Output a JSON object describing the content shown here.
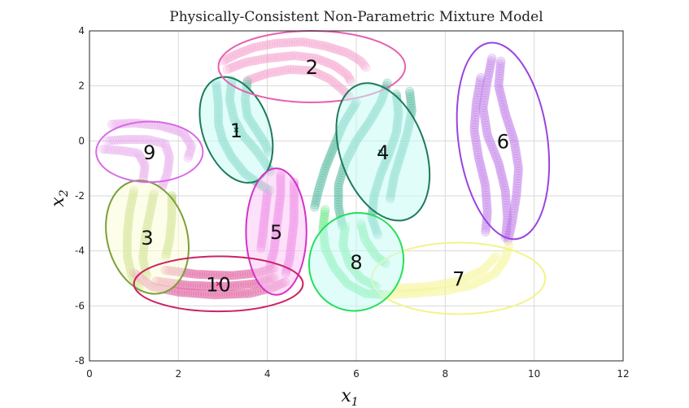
{
  "chart_data": {
    "type": "scatter",
    "title": "Physically-Consistent Non-Parametric Mixture Model",
    "xlabel": "x",
    "xlabel_sub": "1",
    "ylabel": "x",
    "ylabel_sub": "2",
    "xlim": [
      0,
      12
    ],
    "ylim": [
      -8,
      4
    ],
    "xticks": [
      0,
      2,
      4,
      6,
      8,
      10,
      12
    ],
    "yticks": [
      -8,
      -6,
      -4,
      -2,
      0,
      2,
      4
    ],
    "grid": true,
    "trajectory_colors": {
      "light_pink": "#f4a0cd",
      "teal": "#4db89a",
      "violet": "#c07ce8",
      "olive": "#a3c24a",
      "green": "#5ee67e",
      "yellow": "#f7f59a",
      "hot_pink": "#e0569a",
      "magenta": "#e04ad0",
      "lavender": "#e6a8ee"
    },
    "clusters": [
      {
        "label": "1",
        "center": [
          3.3,
          0.4
        ],
        "rx": 0.75,
        "ry": 2.0,
        "angle": 20,
        "edge": "#1e7a5a",
        "fill": "#c6fbf5",
        "marker": [
          3.3,
          0.4
        ]
      },
      {
        "label": "2",
        "center": [
          5.0,
          2.7
        ],
        "rx": 2.1,
        "ry": 1.3,
        "angle": 0,
        "edge": "#e85fb0",
        "fill": "none"
      },
      {
        "label": "3",
        "center": [
          1.3,
          -3.5
        ],
        "rx": 0.9,
        "ry": 2.1,
        "angle": 15,
        "edge": "#7aa038",
        "fill": "#fbfdd8"
      },
      {
        "label": "4",
        "center": [
          6.6,
          -0.4
        ],
        "rx": 0.95,
        "ry": 2.6,
        "angle": 20,
        "edge": "#1e7a5a",
        "fill": "#c6fbf5",
        "marker": [
          6.55,
          -0.4
        ]
      },
      {
        "label": "5",
        "center": [
          4.2,
          -3.3
        ],
        "rx": 0.68,
        "ry": 2.3,
        "angle": 0,
        "edge": "#d432c8",
        "fill": "#fcc6f5"
      },
      {
        "label": "6",
        "center": [
          9.3,
          0.0
        ],
        "rx": 1.0,
        "ry": 3.6,
        "angle": 8,
        "edge": "#9a44e0",
        "fill": "none"
      },
      {
        "label": "7",
        "center": [
          8.3,
          -5.0
        ],
        "rx": 1.95,
        "ry": 1.3,
        "angle": 0,
        "edge": "#f5f28c",
        "fill": "none"
      },
      {
        "label": "8",
        "center": [
          6.0,
          -4.4
        ],
        "rx": 1.05,
        "ry": 1.8,
        "angle": -25,
        "edge": "#24e058",
        "fill": "#c6fbf5"
      },
      {
        "label": "9",
        "center": [
          1.35,
          -0.4
        ],
        "rx": 1.2,
        "ry": 1.1,
        "angle": 0,
        "edge": "#d86ae6",
        "fill": "none"
      },
      {
        "label": "10",
        "center": [
          2.9,
          -5.2
        ],
        "rx": 1.9,
        "ry": 1.0,
        "angle": 0,
        "edge": "#cc2266",
        "fill": "none",
        "marker": [
          2.9,
          -5.2
        ]
      }
    ],
    "trajectories": [
      {
        "color": "light_pink",
        "points": [
          [
            3.0,
            2.9
          ],
          [
            3.3,
            3.15
          ],
          [
            3.7,
            3.4
          ],
          [
            4.2,
            3.55
          ],
          [
            4.8,
            3.6
          ],
          [
            5.3,
            3.45
          ],
          [
            5.8,
            3.2
          ],
          [
            6.1,
            2.9
          ],
          [
            6.25,
            2.6
          ]
        ]
      },
      {
        "color": "light_pink",
        "points": [
          [
            3.1,
            2.6
          ],
          [
            3.5,
            2.85
          ],
          [
            4.0,
            3.0
          ],
          [
            4.6,
            3.1
          ],
          [
            5.1,
            3.0
          ],
          [
            5.5,
            2.75
          ],
          [
            5.8,
            2.4
          ],
          [
            5.9,
            2.1
          ]
        ]
      },
      {
        "color": "light_pink",
        "points": [
          [
            3.55,
            2.2
          ],
          [
            4.0,
            2.45
          ],
          [
            4.5,
            2.6
          ],
          [
            5.0,
            2.55
          ],
          [
            5.4,
            2.25
          ],
          [
            5.7,
            1.85
          ],
          [
            5.9,
            1.5
          ]
        ]
      },
      {
        "color": "teal",
        "points": [
          [
            2.85,
            2.1
          ],
          [
            2.9,
            1.3
          ],
          [
            2.9,
            0.6
          ],
          [
            3.0,
            0.0
          ],
          [
            3.2,
            -0.6
          ],
          [
            3.5,
            -1.2
          ],
          [
            3.85,
            -1.6
          ],
          [
            4.1,
            -1.85
          ]
        ]
      },
      {
        "color": "teal",
        "points": [
          [
            3.2,
            2.2
          ],
          [
            3.15,
            1.5
          ],
          [
            3.25,
            0.8
          ],
          [
            3.45,
            0.2
          ],
          [
            3.75,
            -0.35
          ],
          [
            3.95,
            -0.8
          ],
          [
            4.1,
            -1.2
          ]
        ]
      },
      {
        "color": "teal",
        "points": [
          [
            3.55,
            2.15
          ],
          [
            3.5,
            1.5
          ],
          [
            3.55,
            0.9
          ],
          [
            3.75,
            0.4
          ],
          [
            3.95,
            -0.1
          ],
          [
            4.05,
            -0.5
          ]
        ]
      },
      {
        "color": "teal",
        "points": [
          [
            6.9,
            1.7
          ],
          [
            6.95,
            1.0
          ],
          [
            6.9,
            0.3
          ],
          [
            6.75,
            -0.4
          ],
          [
            6.55,
            -1.2
          ],
          [
            6.4,
            -2.0
          ],
          [
            6.35,
            -2.8
          ],
          [
            6.5,
            -3.5
          ]
        ]
      },
      {
        "color": "teal",
        "points": [
          [
            6.7,
            2.1
          ],
          [
            6.55,
            1.4
          ],
          [
            6.3,
            0.7
          ],
          [
            6.0,
            0.0
          ],
          [
            5.75,
            -0.8
          ],
          [
            5.6,
            -1.6
          ],
          [
            5.6,
            -2.4
          ],
          [
            5.7,
            -3.2
          ]
        ]
      },
      {
        "color": "teal",
        "points": [
          [
            7.2,
            1.8
          ],
          [
            7.25,
            1.1
          ],
          [
            7.15,
            0.3
          ],
          [
            7.0,
            -0.5
          ],
          [
            6.85,
            -1.3
          ],
          [
            6.75,
            -2.2
          ]
        ]
      },
      {
        "color": "teal",
        "points": [
          [
            6.0,
            1.4
          ],
          [
            5.7,
            0.6
          ],
          [
            5.5,
            -0.2
          ],
          [
            5.3,
            -1.0
          ],
          [
            5.15,
            -1.8
          ],
          [
            5.05,
            -2.5
          ]
        ]
      },
      {
        "color": "violet",
        "points": [
          [
            9.05,
            3.0
          ],
          [
            8.95,
            2.2
          ],
          [
            8.85,
            1.2
          ],
          [
            8.95,
            0.2
          ],
          [
            9.2,
            -0.8
          ],
          [
            9.35,
            -1.8
          ],
          [
            9.4,
            -2.8
          ],
          [
            9.35,
            -3.6
          ]
        ]
      },
      {
        "color": "violet",
        "points": [
          [
            9.25,
            2.9
          ],
          [
            9.2,
            2.0
          ],
          [
            9.35,
            1.0
          ],
          [
            9.55,
            0.0
          ],
          [
            9.65,
            -1.0
          ],
          [
            9.6,
            -2.0
          ],
          [
            9.5,
            -3.0
          ],
          [
            9.4,
            -3.7
          ]
        ]
      },
      {
        "color": "violet",
        "points": [
          [
            8.8,
            2.3
          ],
          [
            8.7,
            1.4
          ],
          [
            8.65,
            0.4
          ],
          [
            8.75,
            -0.6
          ],
          [
            8.9,
            -1.6
          ],
          [
            8.95,
            -2.6
          ],
          [
            8.9,
            -3.4
          ]
        ]
      },
      {
        "color": "olive",
        "points": [
          [
            1.0,
            -1.8
          ],
          [
            0.9,
            -2.6
          ],
          [
            0.85,
            -3.4
          ],
          [
            0.85,
            -4.2
          ],
          [
            0.95,
            -4.9
          ],
          [
            1.15,
            -5.4
          ]
        ]
      },
      {
        "color": "olive",
        "points": [
          [
            1.45,
            -1.9
          ],
          [
            1.35,
            -2.7
          ],
          [
            1.25,
            -3.5
          ],
          [
            1.2,
            -4.3
          ],
          [
            1.3,
            -5.0
          ]
        ]
      },
      {
        "color": "olive",
        "points": [
          [
            1.85,
            -2.0
          ],
          [
            1.85,
            -2.8
          ],
          [
            1.8,
            -3.6
          ],
          [
            1.7,
            -4.3
          ]
        ]
      },
      {
        "color": "green",
        "points": [
          [
            5.3,
            -2.5
          ],
          [
            5.25,
            -3.2
          ],
          [
            5.3,
            -3.9
          ],
          [
            5.5,
            -4.6
          ],
          [
            5.8,
            -5.2
          ],
          [
            6.2,
            -5.55
          ],
          [
            6.7,
            -5.6
          ]
        ]
      },
      {
        "color": "green",
        "points": [
          [
            5.75,
            -3.1
          ],
          [
            5.7,
            -3.8
          ],
          [
            5.85,
            -4.5
          ],
          [
            6.1,
            -5.0
          ],
          [
            6.5,
            -5.35
          ]
        ]
      },
      {
        "color": "green",
        "points": [
          [
            6.1,
            -3.0
          ],
          [
            6.2,
            -3.6
          ],
          [
            6.45,
            -4.2
          ],
          [
            6.7,
            -4.5
          ]
        ]
      },
      {
        "color": "yellow",
        "points": [
          [
            6.6,
            -5.6
          ],
          [
            7.3,
            -5.55
          ],
          [
            8.0,
            -5.45
          ],
          [
            8.6,
            -5.25
          ],
          [
            9.1,
            -4.85
          ],
          [
            9.35,
            -4.3
          ],
          [
            9.45,
            -3.7
          ]
        ]
      },
      {
        "color": "yellow",
        "points": [
          [
            6.9,
            -5.35
          ],
          [
            7.6,
            -5.3
          ],
          [
            8.3,
            -5.1
          ],
          [
            8.85,
            -4.7
          ],
          [
            9.2,
            -4.1
          ]
        ]
      },
      {
        "color": "hot_pink",
        "points": [
          [
            1.0,
            -4.8
          ],
          [
            1.4,
            -5.3
          ],
          [
            2.0,
            -5.5
          ],
          [
            2.8,
            -5.6
          ],
          [
            3.6,
            -5.55
          ],
          [
            4.1,
            -5.35
          ],
          [
            4.45,
            -5.1
          ]
        ]
      },
      {
        "color": "hot_pink",
        "points": [
          [
            1.5,
            -5.1
          ],
          [
            2.2,
            -5.25
          ],
          [
            3.0,
            -5.3
          ],
          [
            3.7,
            -5.2
          ],
          [
            4.2,
            -4.95
          ]
        ]
      },
      {
        "color": "hot_pink",
        "points": [
          [
            1.7,
            -4.7
          ],
          [
            2.4,
            -4.85
          ],
          [
            3.2,
            -4.9
          ],
          [
            3.8,
            -4.8
          ],
          [
            4.2,
            -4.6
          ]
        ]
      },
      {
        "color": "magenta",
        "points": [
          [
            4.3,
            -1.2
          ],
          [
            4.3,
            -1.9
          ],
          [
            4.25,
            -2.6
          ],
          [
            4.2,
            -3.3
          ],
          [
            4.15,
            -4.0
          ],
          [
            4.05,
            -4.6
          ]
        ]
      },
      {
        "color": "magenta",
        "points": [
          [
            4.6,
            -1.5
          ],
          [
            4.6,
            -2.2
          ],
          [
            4.6,
            -2.9
          ],
          [
            4.55,
            -3.6
          ],
          [
            4.5,
            -4.3
          ],
          [
            4.4,
            -4.9
          ]
        ]
      },
      {
        "color": "magenta",
        "points": [
          [
            4.0,
            -1.9
          ],
          [
            3.95,
            -2.6
          ],
          [
            3.9,
            -3.3
          ],
          [
            3.85,
            -4.0
          ]
        ]
      },
      {
        "color": "lavender",
        "points": [
          [
            0.4,
            0.0
          ],
          [
            0.8,
            0.05
          ],
          [
            1.3,
            0.05
          ],
          [
            1.7,
            -0.1
          ],
          [
            1.8,
            -0.6
          ],
          [
            1.75,
            -1.2
          ],
          [
            1.6,
            -1.8
          ]
        ]
      },
      {
        "color": "lavender",
        "points": [
          [
            0.5,
            0.6
          ],
          [
            1.0,
            0.65
          ],
          [
            1.6,
            0.55
          ],
          [
            2.1,
            0.3
          ],
          [
            2.3,
            -0.2
          ],
          [
            2.2,
            -0.7
          ]
        ]
      },
      {
        "color": "lavender",
        "points": [
          [
            0.3,
            -0.3
          ],
          [
            0.7,
            -0.35
          ],
          [
            1.1,
            -0.45
          ],
          [
            1.25,
            -0.9
          ],
          [
            1.2,
            -1.5
          ]
        ]
      }
    ]
  }
}
